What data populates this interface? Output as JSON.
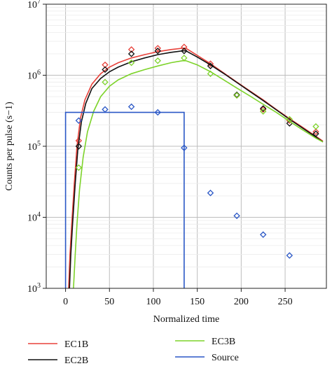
{
  "chart_data": {
    "type": "line",
    "xlabel": "Normalized time",
    "ylabel": "Counts per pulse (s−1)",
    "xlim": [
      -22,
      297
    ],
    "ylim": [
      1000,
      10000000
    ],
    "y_scale": "log",
    "grid": true,
    "legend_position": "bottom",
    "x_ticks": [
      0,
      50,
      100,
      150,
      200,
      250
    ],
    "y_ticks": [
      {
        "value": 1000,
        "base": "10",
        "exp": "3"
      },
      {
        "value": 10000,
        "base": "10",
        "exp": "4"
      },
      {
        "value": 100000,
        "base": "10",
        "exp": "5"
      },
      {
        "value": 1000000,
        "base": "10",
        "exp": "6"
      },
      {
        "value": 10000000,
        "base": "10",
        "exp": "7"
      }
    ],
    "series": [
      {
        "name": "EC1B",
        "color": "#e8413a",
        "curve": [
          [
            3.5,
            1000
          ],
          [
            5,
            3000
          ],
          [
            7,
            8000
          ],
          [
            10,
            30000
          ],
          [
            13,
            100000
          ],
          [
            17,
            250000
          ],
          [
            22,
            450000
          ],
          [
            30,
            750000
          ],
          [
            40,
            1050000
          ],
          [
            50,
            1300000
          ],
          [
            60,
            1500000
          ],
          [
            75,
            1750000
          ],
          [
            90,
            1950000
          ],
          [
            105,
            2150000
          ],
          [
            120,
            2300000
          ],
          [
            133,
            2400000
          ],
          [
            137,
            2400000
          ],
          [
            150,
            1900000
          ],
          [
            165,
            1450000
          ],
          [
            180,
            1080000
          ],
          [
            195,
            800000
          ],
          [
            210,
            600000
          ],
          [
            225,
            450000
          ],
          [
            240,
            330000
          ],
          [
            255,
            245000
          ],
          [
            270,
            185000
          ],
          [
            285,
            138000
          ],
          [
            293,
            118000
          ]
        ],
        "markers": [
          [
            15,
            120000
          ],
          [
            45,
            1400000
          ],
          [
            75,
            2300000
          ],
          [
            105,
            2400000
          ],
          [
            135,
            2500000
          ],
          [
            165,
            1450000
          ],
          [
            195,
            520000
          ],
          [
            225,
            330000
          ],
          [
            255,
            230000
          ],
          [
            285,
            160000
          ]
        ]
      },
      {
        "name": "EC2B",
        "color": "#111111",
        "curve": [
          [
            4.5,
            1000
          ],
          [
            6,
            3000
          ],
          [
            8,
            8000
          ],
          [
            11,
            30000
          ],
          [
            14,
            90000
          ],
          [
            18,
            220000
          ],
          [
            23,
            400000
          ],
          [
            30,
            650000
          ],
          [
            40,
            900000
          ],
          [
            50,
            1120000
          ],
          [
            60,
            1300000
          ],
          [
            75,
            1550000
          ],
          [
            90,
            1750000
          ],
          [
            105,
            1950000
          ],
          [
            120,
            2100000
          ],
          [
            133,
            2200000
          ],
          [
            137,
            2200000
          ],
          [
            150,
            1800000
          ],
          [
            165,
            1400000
          ],
          [
            180,
            1060000
          ],
          [
            195,
            790000
          ],
          [
            210,
            590000
          ],
          [
            225,
            440000
          ],
          [
            240,
            325000
          ],
          [
            255,
            240000
          ],
          [
            270,
            180000
          ],
          [
            285,
            135000
          ],
          [
            293,
            115000
          ]
        ],
        "markers": [
          [
            15,
            100000
          ],
          [
            45,
            1200000
          ],
          [
            75,
            2000000
          ],
          [
            105,
            2200000
          ],
          [
            135,
            2200000
          ],
          [
            165,
            1350000
          ],
          [
            195,
            530000
          ],
          [
            225,
            340000
          ],
          [
            255,
            210000
          ],
          [
            285,
            150000
          ]
        ]
      },
      {
        "name": "EC3B",
        "color": "#7dd32a",
        "curve": [
          [
            9,
            1000
          ],
          [
            11,
            3000
          ],
          [
            13,
            8000
          ],
          [
            16,
            25000
          ],
          [
            20,
            70000
          ],
          [
            25,
            160000
          ],
          [
            32,
            310000
          ],
          [
            40,
            500000
          ],
          [
            50,
            700000
          ],
          [
            60,
            860000
          ],
          [
            75,
            1050000
          ],
          [
            90,
            1200000
          ],
          [
            105,
            1350000
          ],
          [
            120,
            1500000
          ],
          [
            133,
            1600000
          ],
          [
            137,
            1600000
          ],
          [
            150,
            1400000
          ],
          [
            165,
            1120000
          ],
          [
            180,
            860000
          ],
          [
            195,
            660000
          ],
          [
            210,
            510000
          ],
          [
            225,
            390000
          ],
          [
            240,
            300000
          ],
          [
            255,
            225000
          ],
          [
            270,
            170000
          ],
          [
            285,
            130000
          ],
          [
            293,
            115000
          ]
        ],
        "markers": [
          [
            15,
            50000
          ],
          [
            45,
            800000
          ],
          [
            75,
            1500000
          ],
          [
            105,
            1600000
          ],
          [
            135,
            1750000
          ],
          [
            165,
            1050000
          ],
          [
            195,
            520000
          ],
          [
            225,
            310000
          ],
          [
            255,
            240000
          ],
          [
            285,
            190000
          ]
        ]
      },
      {
        "name": "Source",
        "color": "#2a57c6",
        "curve": [
          [
            0,
            1000
          ],
          [
            0,
            300000
          ],
          [
            135,
            300000
          ],
          [
            135,
            1000
          ]
        ],
        "markers": [
          [
            15,
            230000
          ],
          [
            45,
            330000
          ],
          [
            75,
            360000
          ],
          [
            105,
            300000
          ],
          [
            135,
            95000
          ],
          [
            165,
            22000
          ],
          [
            195,
            10500
          ],
          [
            225,
            5700
          ],
          [
            255,
            2900
          ]
        ]
      }
    ]
  }
}
